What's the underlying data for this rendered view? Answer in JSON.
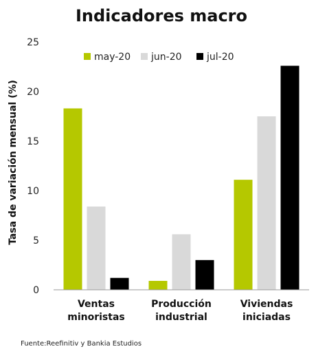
{
  "chart_data": {
    "type": "bar",
    "title": "Indicadores macro",
    "ylabel": "Tasa de variación mensual (%)",
    "xlabel": "",
    "categories": [
      [
        "Ventas",
        "minoristas"
      ],
      [
        "Producción",
        "industrial"
      ],
      [
        "Viviendas",
        "iniciadas"
      ]
    ],
    "series": [
      {
        "name": "may-20",
        "color": "#b5c800",
        "values": [
          18.3,
          0.9,
          11.1
        ]
      },
      {
        "name": "jun-20",
        "color": "#d9d9d9",
        "values": [
          8.4,
          5.6,
          17.5
        ]
      },
      {
        "name": "jul-20",
        "color": "#000000",
        "values": [
          1.2,
          3.0,
          22.6
        ]
      }
    ],
    "ylim": [
      0,
      25
    ],
    "yticks": [
      0,
      5,
      10,
      15,
      20,
      25
    ],
    "grid": false,
    "legend": "top"
  },
  "source": "Fuente:Reefinitiv y Bankia Estudios"
}
